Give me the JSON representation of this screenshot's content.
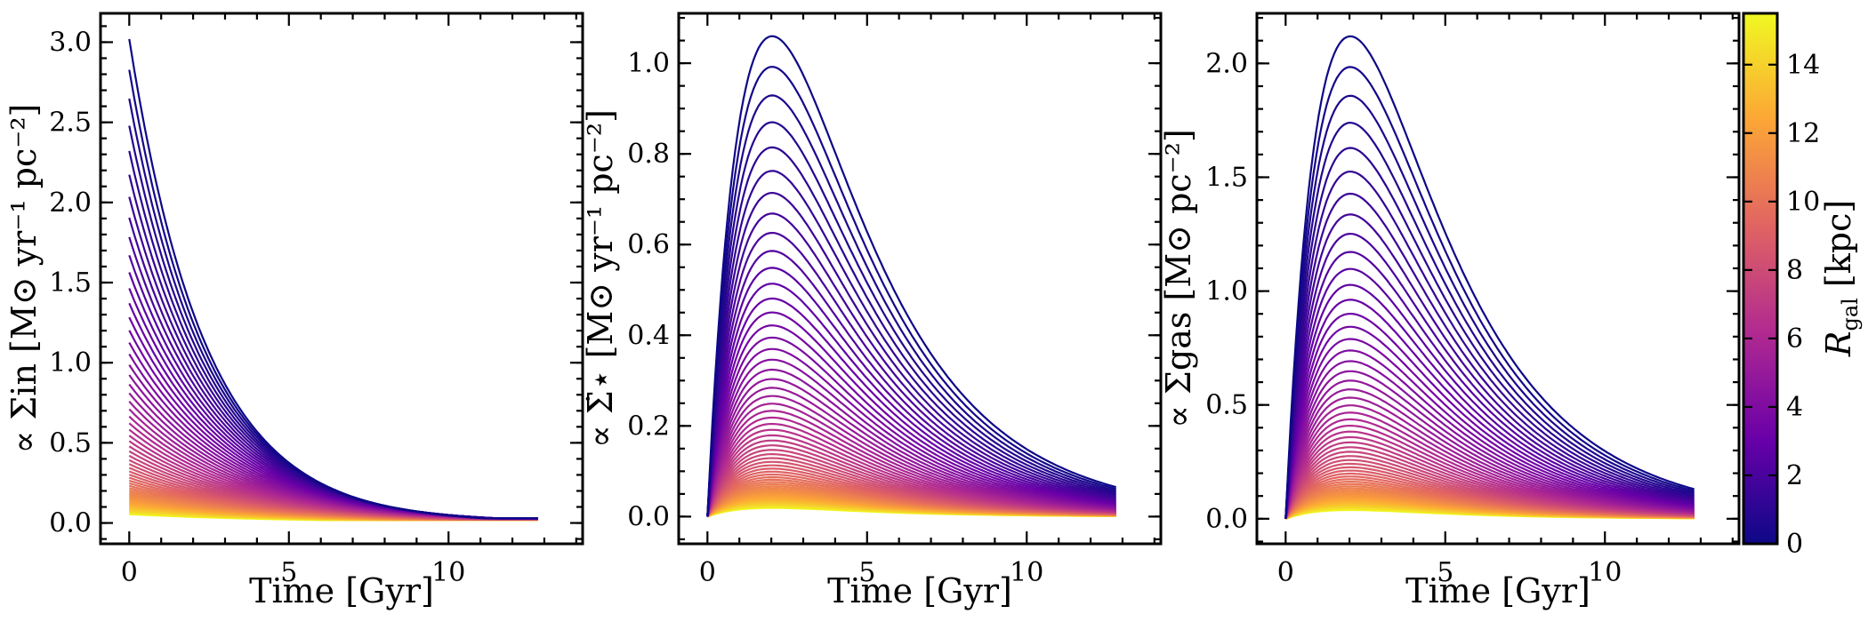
{
  "chart_data": [
    {
      "type": "line",
      "panel": 1,
      "xlabel": "Time [Gyr]",
      "ylabel": "∝ Σ_in [M_⊙ yr^-1 pc^-2]",
      "ylabel_text": "∝ Σin [M⊙ yr⁻¹ pc⁻²]",
      "xlim": [
        -0.9,
        14.2
      ],
      "ylim": [
        -0.13,
        3.18
      ],
      "xticks": [
        0,
        5,
        10
      ],
      "yticks": [
        0.0,
        0.5,
        1.0,
        1.5,
        2.0,
        2.5,
        3.0
      ],
      "ytick_labels": [
        "0.0",
        "0.5",
        "1.0",
        "1.5",
        "2.0",
        "2.5",
        "3.0"
      ],
      "x_range": [
        0.0,
        12.8
      ],
      "series_model": "exponential decline",
      "series_count": 62,
      "inner_curve": {
        "start_value": 3.02,
        "end_value": 0.03
      },
      "curves_colored_by": "R_gal [kpc]"
    },
    {
      "type": "line",
      "panel": 2,
      "xlabel": "Time [Gyr]",
      "ylabel": "∝ Σ̇_⋆ [M_⊙ yr^-1 pc^-2]",
      "ylabel_text": "∝ Σ̇⋆ [M⊙ yr⁻¹ pc⁻²]",
      "xlim": [
        -0.9,
        14.2
      ],
      "ylim": [
        -0.06,
        1.11
      ],
      "xticks": [
        0,
        5,
        10
      ],
      "yticks": [
        0.0,
        0.2,
        0.4,
        0.6,
        0.8,
        1.0
      ],
      "ytick_labels": [
        "0.0",
        "0.2",
        "0.4",
        "0.6",
        "0.8",
        "1.0"
      ],
      "x_range": [
        0.0,
        12.8
      ],
      "series_model": "rise then decline",
      "series_count": 62,
      "inner_curve": {
        "peak_time": 2.0,
        "peak_value": 1.055,
        "end_value": 0.065
      },
      "curves_colored_by": "R_gal [kpc]"
    },
    {
      "type": "line",
      "panel": 3,
      "xlabel": "Time [Gyr]",
      "ylabel": "∝ Σ_gas [M_⊙ pc^-2]",
      "ylabel_text": "∝ Σgas [M⊙ pc⁻²]",
      "xlim": [
        -0.9,
        14.2
      ],
      "ylim": [
        -0.11,
        2.22
      ],
      "xticks": [
        0,
        5,
        10
      ],
      "yticks": [
        0.0,
        0.5,
        1.0,
        1.5,
        2.0
      ],
      "ytick_labels": [
        "0.0",
        "0.5",
        "1.0",
        "1.5",
        "2.0"
      ],
      "x_range": [
        0.0,
        12.8
      ],
      "series_model": "rise then decline",
      "series_count": 62,
      "inner_curve": {
        "peak_time": 2.0,
        "peak_value": 2.11,
        "end_value": 0.13
      },
      "curves_colored_by": "R_gal [kpc]"
    }
  ],
  "colorbar": {
    "label": "R_gal [kpc]",
    "label_text": "Rgal [kpc]",
    "colormap": "plasma",
    "range": [
      0,
      15.5
    ],
    "ticks": [
      0,
      2,
      4,
      6,
      8,
      10,
      12,
      14
    ],
    "tick_labels": [
      "0",
      "2",
      "4",
      "6",
      "8",
      "10",
      "12",
      "14"
    ]
  },
  "palette": {
    "plasma": [
      "#0d0887",
      "#6a00a8",
      "#b12a90",
      "#e16462",
      "#fca636",
      "#f0f921"
    ],
    "axes": "#000000",
    "background": "#ffffff"
  }
}
